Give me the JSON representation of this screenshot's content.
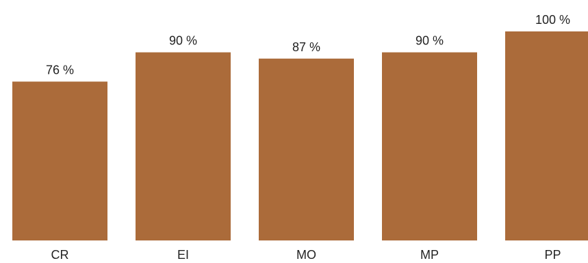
{
  "chart_data": {
    "type": "bar",
    "categories": [
      "CR",
      "EI",
      "MO",
      "MP",
      "PP"
    ],
    "values": [
      76,
      90,
      87,
      90,
      100
    ],
    "data_labels": [
      "76 %",
      "90 %",
      "87 %",
      "90 %",
      "100 %"
    ],
    "title": "",
    "xlabel": "",
    "ylabel": "",
    "ylim": [
      0,
      100
    ],
    "grid": false,
    "bar_color": "#ab6b3a"
  }
}
